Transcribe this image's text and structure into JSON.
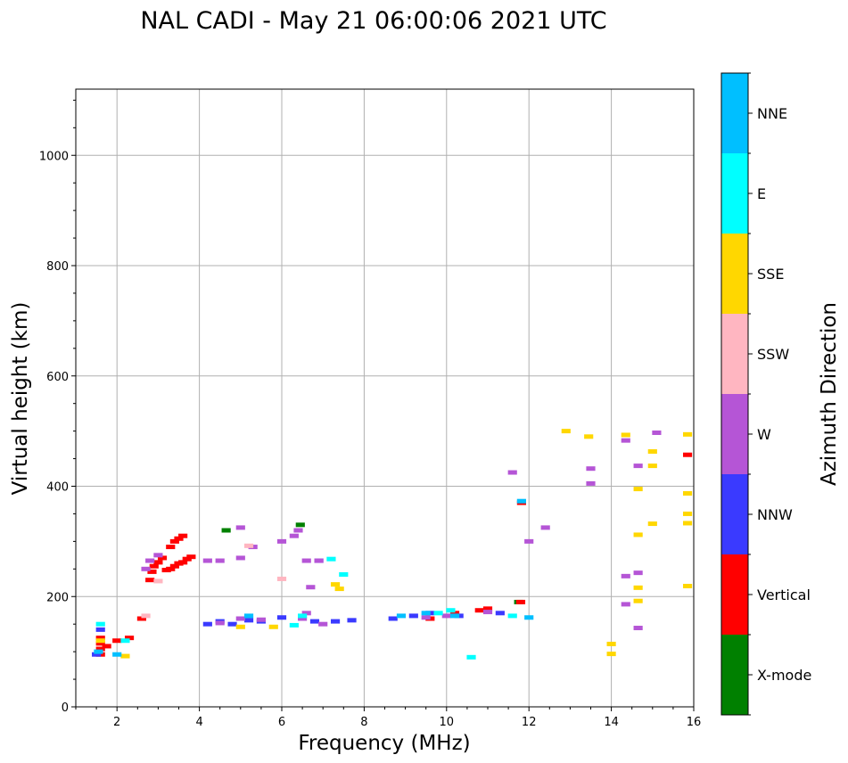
{
  "chart_data": {
    "type": "scatter",
    "title": "NAL CADI - May 21 06:00:06 2021 UTC",
    "xlabel": "Frequency (MHz)",
    "ylabel": "Virtual height (km)",
    "xlim": [
      1,
      16
    ],
    "ylim": [
      0,
      1120
    ],
    "x_ticks": [
      2,
      4,
      6,
      8,
      10,
      12,
      14,
      16
    ],
    "y_ticks": [
      0,
      200,
      400,
      600,
      800,
      1000
    ],
    "x_tick_labels": [
      "2",
      "4",
      "6",
      "8",
      "10",
      "12",
      "14",
      "16"
    ],
    "y_tick_labels": [
      "0",
      "200",
      "400",
      "600",
      "800",
      "1000"
    ],
    "grid": true,
    "colorbar": {
      "label": "Azimuth Direction",
      "categories": [
        "X-mode",
        "Vertical",
        "NNW",
        "W",
        "SSW",
        "SSE",
        "E",
        "NNE"
      ],
      "colors": [
        "#008000",
        "#ff0000",
        "#3a3aff",
        "#b555d6",
        "#ffb6c1",
        "#ffd700",
        "#00ffff",
        "#00bfff"
      ]
    },
    "series": [
      {
        "name": "X-mode",
        "points": [
          [
            4.65,
            320
          ],
          [
            6.45,
            330
          ],
          [
            11.75,
            190
          ]
        ]
      },
      {
        "name": "Vertical",
        "points": [
          [
            1.6,
            95
          ],
          [
            1.6,
            105
          ],
          [
            1.6,
            115
          ],
          [
            1.6,
            125
          ],
          [
            1.75,
            110
          ],
          [
            2.0,
            120
          ],
          [
            2.3,
            125
          ],
          [
            2.6,
            160
          ],
          [
            2.8,
            230
          ],
          [
            2.85,
            245
          ],
          [
            2.9,
            255
          ],
          [
            3.0,
            262
          ],
          [
            3.1,
            270
          ],
          [
            3.2,
            248
          ],
          [
            3.3,
            250
          ],
          [
            3.4,
            255
          ],
          [
            3.5,
            260
          ],
          [
            3.6,
            262
          ],
          [
            3.7,
            268
          ],
          [
            3.8,
            272
          ],
          [
            3.3,
            290
          ],
          [
            3.4,
            300
          ],
          [
            3.5,
            305
          ],
          [
            3.6,
            310
          ],
          [
            9.6,
            160
          ],
          [
            10.2,
            170
          ],
          [
            10.8,
            175
          ],
          [
            11.0,
            178
          ],
          [
            11.82,
            370
          ],
          [
            11.8,
            190
          ],
          [
            15.85,
            457
          ]
        ]
      },
      {
        "name": "NNW",
        "points": [
          [
            1.5,
            95
          ],
          [
            1.6,
            140
          ],
          [
            4.2,
            150
          ],
          [
            4.5,
            155
          ],
          [
            4.8,
            150
          ],
          [
            5.2,
            157
          ],
          [
            5.5,
            155
          ],
          [
            6.0,
            162
          ],
          [
            6.8,
            155
          ],
          [
            7.3,
            155
          ],
          [
            7.7,
            157
          ],
          [
            8.7,
            160
          ],
          [
            9.2,
            165
          ],
          [
            9.6,
            170
          ],
          [
            10.3,
            165
          ],
          [
            11.3,
            170
          ],
          [
            6.9,
            265
          ]
        ]
      },
      {
        "name": "W",
        "points": [
          [
            2.7,
            250
          ],
          [
            2.8,
            265
          ],
          [
            3.0,
            275
          ],
          [
            4.2,
            265
          ],
          [
            4.5,
            265
          ],
          [
            5.0,
            270
          ],
          [
            5.3,
            290
          ],
          [
            5.0,
            325
          ],
          [
            6.0,
            300
          ],
          [
            6.3,
            310
          ],
          [
            6.4,
            320
          ],
          [
            6.6,
            265
          ],
          [
            6.9,
            265
          ],
          [
            6.7,
            217
          ],
          [
            4.5,
            152
          ],
          [
            5.0,
            160
          ],
          [
            5.5,
            158
          ],
          [
            6.5,
            160
          ],
          [
            6.6,
            170
          ],
          [
            7.0,
            150
          ],
          [
            9.5,
            162
          ],
          [
            10.0,
            165
          ],
          [
            11.0,
            172
          ],
          [
            11.6,
            425
          ],
          [
            12.0,
            300
          ],
          [
            12.4,
            325
          ],
          [
            13.5,
            432
          ],
          [
            13.5,
            405
          ],
          [
            14.35,
            483
          ],
          [
            14.65,
            437
          ],
          [
            15.1,
            497
          ],
          [
            14.65,
            243
          ],
          [
            14.35,
            237
          ],
          [
            14.35,
            186
          ],
          [
            14.65,
            143
          ]
        ]
      },
      {
        "name": "SSW",
        "points": [
          [
            2.7,
            165
          ],
          [
            3.0,
            228
          ],
          [
            5.2,
            292
          ],
          [
            6.0,
            232
          ]
        ]
      },
      {
        "name": "SSE",
        "points": [
          [
            1.6,
            120
          ],
          [
            2.2,
            92
          ],
          [
            5.0,
            145
          ],
          [
            5.8,
            145
          ],
          [
            7.3,
            222
          ],
          [
            7.4,
            214
          ],
          [
            12.9,
            500
          ],
          [
            13.45,
            490
          ],
          [
            14.35,
            493
          ],
          [
            14.65,
            395
          ],
          [
            14.65,
            312
          ],
          [
            15.0,
            463
          ],
          [
            15.0,
            437
          ],
          [
            15.0,
            332
          ],
          [
            14.65,
            216
          ],
          [
            14.65,
            192
          ],
          [
            14.0,
            114
          ],
          [
            14.0,
            96
          ],
          [
            15.85,
            494
          ],
          [
            15.85,
            387
          ],
          [
            15.85,
            350
          ],
          [
            15.85,
            333
          ],
          [
            15.85,
            219
          ]
        ]
      },
      {
        "name": "E",
        "points": [
          [
            1.6,
            150
          ],
          [
            2.2,
            120
          ],
          [
            6.5,
            165
          ],
          [
            7.2,
            268
          ],
          [
            7.5,
            240
          ],
          [
            9.8,
            170
          ],
          [
            10.1,
            175
          ],
          [
            10.6,
            90
          ],
          [
            11.6,
            165
          ],
          [
            6.3,
            148
          ]
        ]
      },
      {
        "name": "NNE",
        "points": [
          [
            1.55,
            100
          ],
          [
            2.0,
            95
          ],
          [
            5.2,
            165
          ],
          [
            8.9,
            165
          ],
          [
            9.5,
            170
          ],
          [
            10.2,
            165
          ],
          [
            11.82,
            373
          ],
          [
            12.0,
            162
          ]
        ]
      }
    ]
  }
}
